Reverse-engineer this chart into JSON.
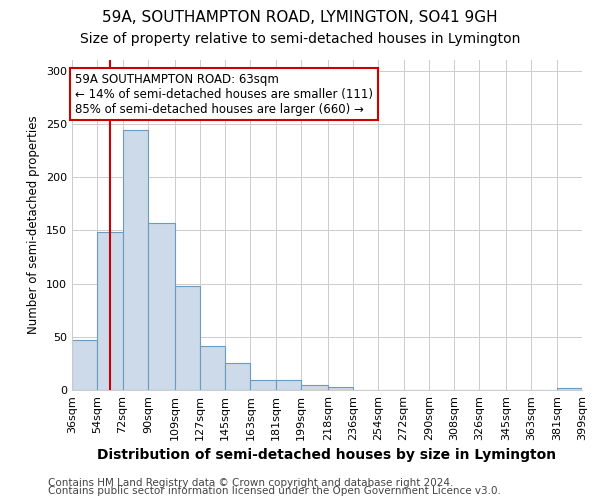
{
  "title1": "59A, SOUTHAMPTON ROAD, LYMINGTON, SO41 9GH",
  "title2": "Size of property relative to semi-detached houses in Lymington",
  "xlabel": "Distribution of semi-detached houses by size in Lymington",
  "ylabel": "Number of semi-detached properties",
  "annotation_title": "59A SOUTHAMPTON ROAD: 63sqm",
  "annotation_line1": "← 14% of semi-detached houses are smaller (111)",
  "annotation_line2": "85% of semi-detached houses are larger (660) →",
  "footer1": "Contains HM Land Registry data © Crown copyright and database right 2024.",
  "footer2": "Contains public sector information licensed under the Open Government Licence v3.0.",
  "property_size": 63,
  "bar_edges": [
    36,
    54,
    72,
    90,
    109,
    127,
    145,
    163,
    181,
    199,
    218,
    236,
    254,
    272,
    290,
    308,
    326,
    345,
    363,
    381,
    399
  ],
  "bar_heights": [
    47,
    148,
    244,
    157,
    98,
    41,
    25,
    9,
    9,
    5,
    3,
    0,
    0,
    0,
    0,
    0,
    0,
    0,
    0,
    2
  ],
  "bar_color": "#ccdaea",
  "bar_edge_color": "#6b9bbf",
  "line_color": "#cc0000",
  "annotation_box_color": "#ffffff",
  "annotation_box_edge": "#cc0000",
  "grid_color": "#cccccc",
  "bg_color": "#ffffff",
  "ylim": [
    0,
    310
  ],
  "title1_fontsize": 11,
  "title2_fontsize": 10,
  "xlabel_fontsize": 10,
  "ylabel_fontsize": 8.5,
  "tick_fontsize": 8,
  "annotation_fontsize": 8.5,
  "footer_fontsize": 7.5
}
